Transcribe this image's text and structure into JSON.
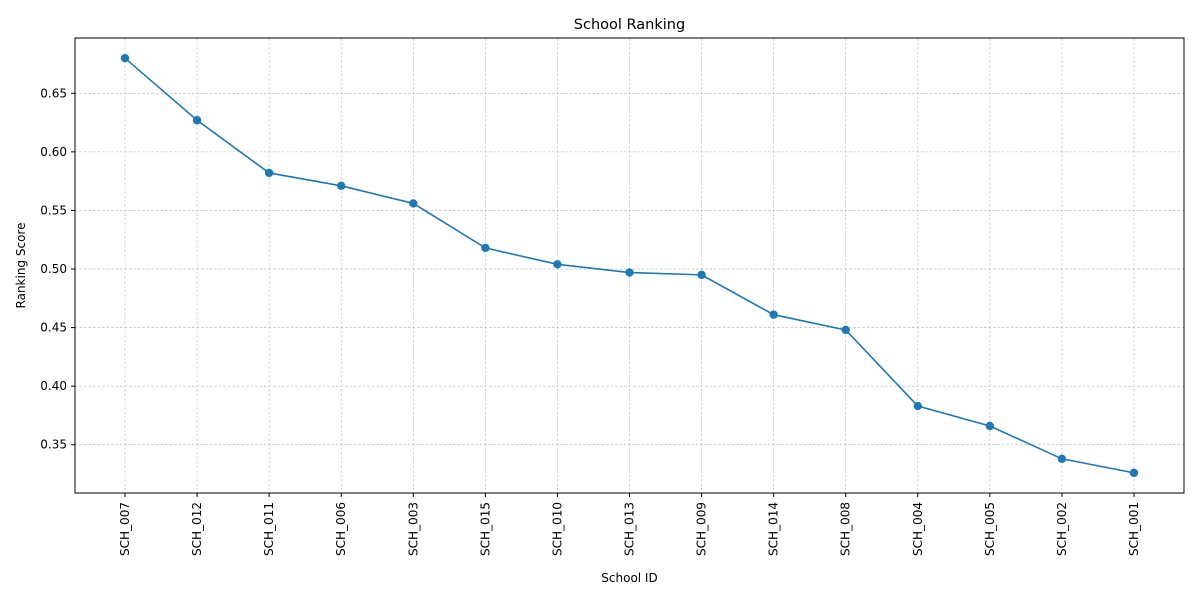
{
  "chart_data": {
    "type": "line",
    "title": "School Ranking",
    "xlabel": "School ID",
    "ylabel": "Ranking Score",
    "categories": [
      "SCH_007",
      "SCH_012",
      "SCH_011",
      "SCH_006",
      "SCH_003",
      "SCH_015",
      "SCH_010",
      "SCH_013",
      "SCH_009",
      "SCH_014",
      "SCH_008",
      "SCH_004",
      "SCH_005",
      "SCH_002",
      "SCH_001"
    ],
    "values": [
      0.68,
      0.627,
      0.582,
      0.571,
      0.556,
      0.518,
      0.504,
      0.497,
      0.495,
      0.461,
      0.448,
      0.383,
      0.366,
      0.338,
      0.326
    ],
    "ylim": [
      0.3088,
      0.6972
    ],
    "yticks": [
      "0.35",
      "0.40",
      "0.45",
      "0.50",
      "0.55",
      "0.60",
      "0.65"
    ],
    "grid": true,
    "marker": "circle",
    "line_color": "#1f77b4",
    "grid_color": "#b0b0b0"
  }
}
